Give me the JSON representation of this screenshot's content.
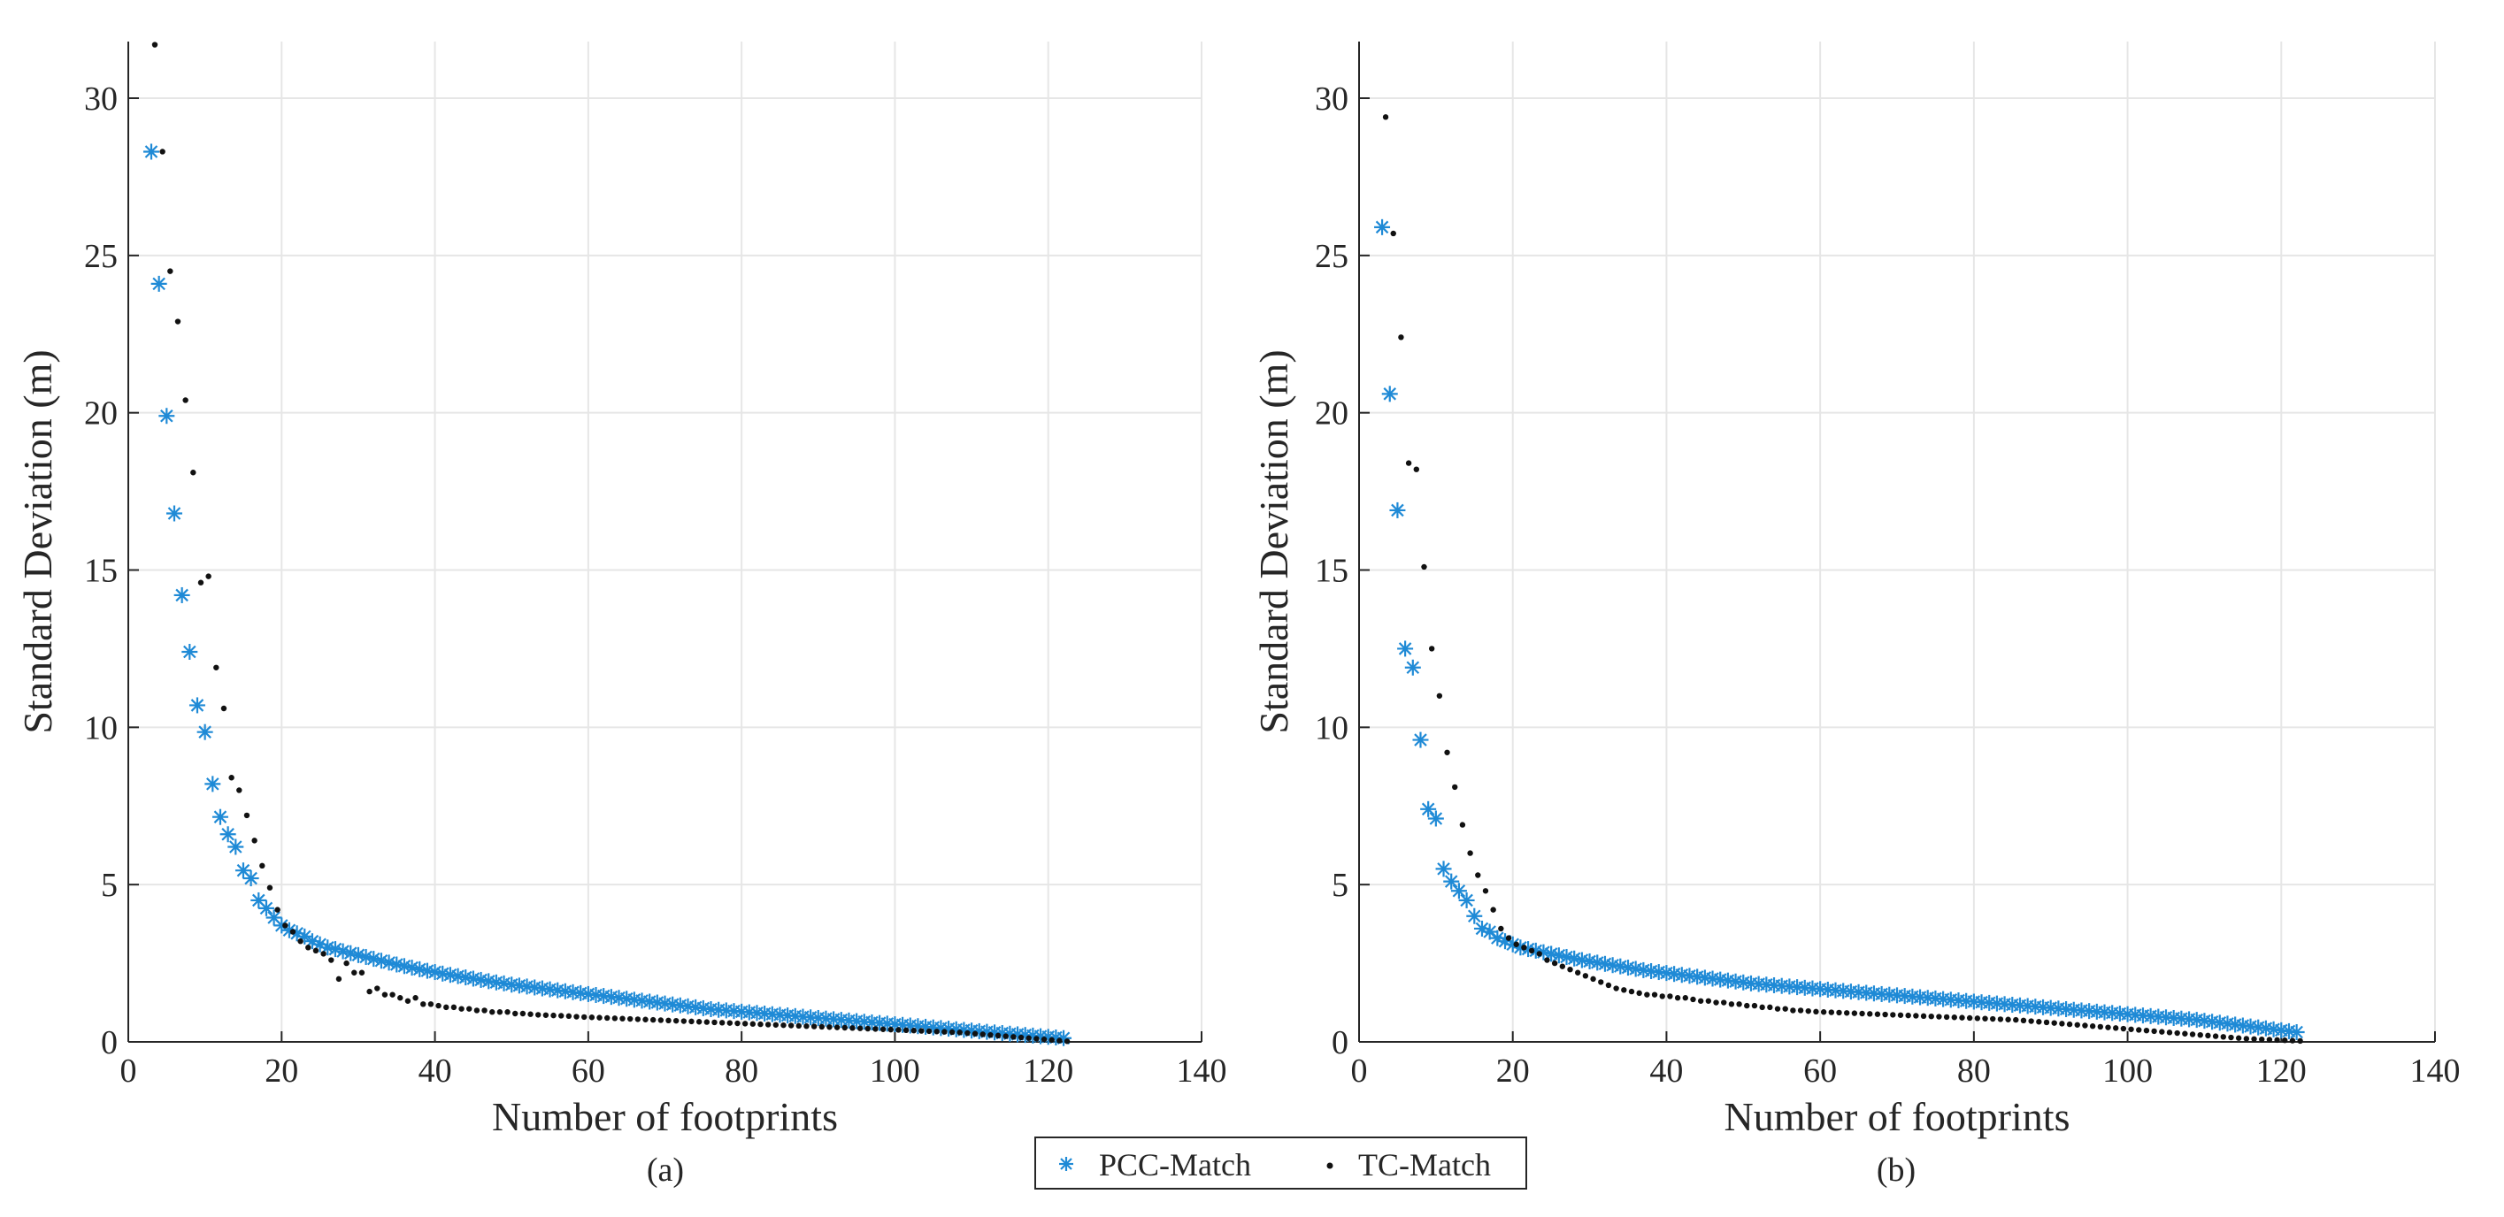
{
  "legend": {
    "entries": [
      {
        "label": "PCC-Match",
        "marker": "asterisk-icon",
        "color": "#1f8ad6"
      },
      {
        "label": "TC-Match",
        "marker": "dot-icon",
        "color": "#111111"
      }
    ]
  },
  "chart_data": [
    {
      "type": "scatter",
      "panel_label": "(a)",
      "xlabel": "Number of footprints",
      "ylabel": "Standard Deviation (m)",
      "xlim": [
        0,
        140
      ],
      "ylim": [
        0,
        31.8
      ],
      "xticks": [
        0,
        20,
        40,
        60,
        80,
        100,
        120,
        140
      ],
      "yticks": [
        0,
        5,
        10,
        15,
        20,
        25,
        30
      ],
      "grid": true,
      "series": [
        {
          "name": "PCC-Match",
          "marker": "asterisk",
          "x": [
            3,
            4,
            5,
            6,
            7,
            8,
            9,
            10,
            11,
            12,
            13,
            14,
            15,
            16,
            17,
            18,
            19,
            20,
            21,
            22,
            23,
            24,
            25,
            26,
            27,
            28,
            29,
            30,
            31,
            32,
            33,
            34,
            35,
            36,
            37,
            38,
            39,
            40,
            41,
            42,
            43,
            44,
            45,
            46,
            47,
            48,
            49,
            50,
            51,
            52,
            53,
            54,
            55,
            56,
            57,
            58,
            59,
            60,
            61,
            62,
            63,
            64,
            65,
            66,
            67,
            68,
            69,
            70,
            71,
            72,
            73,
            74,
            75,
            76,
            77,
            78,
            79,
            80,
            81,
            82,
            83,
            84,
            85,
            86,
            87,
            88,
            89,
            90,
            91,
            92,
            93,
            94,
            95,
            96,
            97,
            98,
            99,
            100,
            101,
            102,
            103,
            104,
            105,
            106,
            107,
            108,
            109,
            110,
            111,
            112,
            113,
            114,
            115,
            116,
            117,
            118,
            119,
            120,
            121,
            122
          ],
          "y": [
            28.3,
            24.1,
            19.9,
            16.8,
            14.2,
            12.4,
            10.7,
            9.85,
            8.2,
            7.15,
            6.6,
            6.2,
            5.45,
            5.2,
            4.5,
            4.25,
            3.95,
            3.7,
            3.55,
            3.45,
            3.35,
            3.2,
            3.1,
            3.0,
            2.95,
            2.88,
            2.82,
            2.76,
            2.7,
            2.64,
            2.58,
            2.52,
            2.46,
            2.41,
            2.36,
            2.31,
            2.26,
            2.22,
            2.17,
            2.13,
            2.09,
            2.05,
            2.01,
            1.97,
            1.93,
            1.89,
            1.86,
            1.82,
            1.79,
            1.76,
            1.73,
            1.7,
            1.67,
            1.64,
            1.61,
            1.58,
            1.55,
            1.52,
            1.49,
            1.46,
            1.43,
            1.4,
            1.37,
            1.34,
            1.31,
            1.28,
            1.25,
            1.22,
            1.19,
            1.16,
            1.13,
            1.1,
            1.07,
            1.04,
            1.02,
            1.0,
            0.98,
            0.96,
            0.94,
            0.92,
            0.9,
            0.88,
            0.86,
            0.84,
            0.82,
            0.8,
            0.78,
            0.76,
            0.74,
            0.72,
            0.7,
            0.68,
            0.66,
            0.64,
            0.62,
            0.6,
            0.58,
            0.56,
            0.54,
            0.52,
            0.5,
            0.48,
            0.46,
            0.44,
            0.42,
            0.4,
            0.38,
            0.36,
            0.34,
            0.32,
            0.3,
            0.28,
            0.26,
            0.24,
            0.22,
            0.2,
            0.18,
            0.16,
            0.14,
            0.12
          ]
        },
        {
          "name": "TC-Match",
          "marker": "dot",
          "x": [
            3,
            4,
            5,
            6,
            7,
            8,
            9,
            10,
            11,
            12,
            13,
            14,
            15,
            16,
            17,
            18,
            19,
            20,
            21,
            22,
            23,
            24,
            25,
            26,
            27,
            28,
            29,
            30,
            31,
            32,
            33,
            34,
            35,
            36,
            37,
            38,
            39,
            40,
            41,
            42,
            43,
            44,
            45,
            46,
            47,
            48,
            49,
            50,
            51,
            52,
            53,
            54,
            55,
            56,
            57,
            58,
            59,
            60,
            61,
            62,
            63,
            64,
            65,
            66,
            67,
            68,
            69,
            70,
            71,
            72,
            73,
            74,
            75,
            76,
            77,
            78,
            79,
            80,
            81,
            82,
            83,
            84,
            85,
            86,
            87,
            88,
            89,
            90,
            91,
            92,
            93,
            94,
            95,
            96,
            97,
            98,
            99,
            100,
            101,
            102,
            103,
            104,
            105,
            106,
            107,
            108,
            109,
            110,
            111,
            112,
            113,
            114,
            115,
            116,
            117,
            118,
            119,
            120,
            121,
            122
          ],
          "y": [
            31.7,
            28.3,
            24.5,
            22.9,
            20.4,
            18.1,
            14.6,
            14.8,
            11.9,
            10.6,
            8.4,
            8.0,
            7.2,
            6.4,
            5.6,
            4.9,
            4.2,
            3.7,
            3.5,
            3.2,
            3.0,
            2.9,
            2.8,
            2.6,
            2.0,
            2.5,
            2.2,
            2.2,
            1.6,
            1.7,
            1.5,
            1.5,
            1.4,
            1.3,
            1.4,
            1.2,
            1.2,
            1.15,
            1.1,
            1.1,
            1.05,
            1.05,
            1.0,
            1.0,
            0.95,
            0.95,
            0.95,
            0.9,
            0.9,
            0.88,
            0.86,
            0.85,
            0.84,
            0.83,
            0.82,
            0.8,
            0.79,
            0.78,
            0.77,
            0.76,
            0.75,
            0.74,
            0.73,
            0.72,
            0.71,
            0.7,
            0.69,
            0.68,
            0.67,
            0.66,
            0.65,
            0.64,
            0.63,
            0.62,
            0.61,
            0.6,
            0.59,
            0.58,
            0.57,
            0.56,
            0.55,
            0.54,
            0.53,
            0.52,
            0.51,
            0.5,
            0.49,
            0.48,
            0.47,
            0.46,
            0.45,
            0.44,
            0.43,
            0.42,
            0.41,
            0.4,
            0.39,
            0.38,
            0.37,
            0.36,
            0.35,
            0.34,
            0.33,
            0.32,
            0.31,
            0.3,
            0.28,
            0.26,
            0.24,
            0.22,
            0.2,
            0.18,
            0.16,
            0.14,
            0.12,
            0.1,
            0.08,
            0.06,
            0.04,
            0.02
          ]
        }
      ]
    },
    {
      "type": "scatter",
      "panel_label": "(b)",
      "xlabel": "Number of footprints",
      "ylabel": "Standard Deviation (m)",
      "xlim": [
        0,
        140
      ],
      "ylim": [
        0,
        31.8
      ],
      "xticks": [
        0,
        20,
        40,
        60,
        80,
        100,
        120,
        140
      ],
      "yticks": [
        0,
        5,
        10,
        15,
        20,
        25,
        30
      ],
      "grid": true,
      "series": [
        {
          "name": "PCC-Match",
          "marker": "asterisk",
          "x": [
            3,
            4,
            5,
            6,
            7,
            8,
            9,
            10,
            11,
            12,
            13,
            14,
            15,
            16,
            17,
            18,
            19,
            20,
            21,
            22,
            23,
            24,
            25,
            26,
            27,
            28,
            29,
            30,
            31,
            32,
            33,
            34,
            35,
            36,
            37,
            38,
            39,
            40,
            41,
            42,
            43,
            44,
            45,
            46,
            47,
            48,
            49,
            50,
            51,
            52,
            53,
            54,
            55,
            56,
            57,
            58,
            59,
            60,
            61,
            62,
            63,
            64,
            65,
            66,
            67,
            68,
            69,
            70,
            71,
            72,
            73,
            74,
            75,
            76,
            77,
            78,
            79,
            80,
            81,
            82,
            83,
            84,
            85,
            86,
            87,
            88,
            89,
            90,
            91,
            92,
            93,
            94,
            95,
            96,
            97,
            98,
            99,
            100,
            101,
            102,
            103,
            104,
            105,
            106,
            107,
            108,
            109,
            110,
            111,
            112,
            113,
            114,
            115,
            116,
            117,
            118,
            119,
            120,
            121,
            122
          ],
          "y": [
            25.9,
            20.6,
            16.9,
            12.5,
            11.9,
            9.6,
            7.4,
            7.1,
            5.5,
            5.1,
            4.8,
            4.5,
            4.0,
            3.6,
            3.5,
            3.3,
            3.2,
            3.1,
            3.0,
            2.95,
            2.9,
            2.85,
            2.8,
            2.75,
            2.7,
            2.65,
            2.6,
            2.56,
            2.52,
            2.48,
            2.44,
            2.4,
            2.36,
            2.32,
            2.28,
            2.25,
            2.22,
            2.19,
            2.16,
            2.13,
            2.1,
            2.07,
            2.04,
            2.01,
            1.98,
            1.95,
            1.92,
            1.89,
            1.86,
            1.84,
            1.82,
            1.8,
            1.78,
            1.76,
            1.74,
            1.72,
            1.7,
            1.68,
            1.66,
            1.64,
            1.62,
            1.6,
            1.58,
            1.56,
            1.54,
            1.52,
            1.5,
            1.48,
            1.46,
            1.44,
            1.42,
            1.4,
            1.38,
            1.36,
            1.34,
            1.32,
            1.3,
            1.28,
            1.26,
            1.24,
            1.22,
            1.2,
            1.18,
            1.16,
            1.14,
            1.12,
            1.1,
            1.08,
            1.06,
            1.04,
            1.02,
            1.0,
            0.98,
            0.96,
            0.94,
            0.92,
            0.9,
            0.88,
            0.86,
            0.84,
            0.82,
            0.8,
            0.78,
            0.76,
            0.74,
            0.72,
            0.7,
            0.67,
            0.64,
            0.61,
            0.58,
            0.55,
            0.52,
            0.49,
            0.46,
            0.43,
            0.4,
            0.37,
            0.34,
            0.31
          ]
        },
        {
          "name": "TC-Match",
          "marker": "dot",
          "x": [
            3,
            4,
            5,
            6,
            7,
            8,
            9,
            10,
            11,
            12,
            13,
            14,
            15,
            16,
            17,
            18,
            19,
            20,
            21,
            22,
            23,
            24,
            25,
            26,
            27,
            28,
            29,
            30,
            31,
            32,
            33,
            34,
            35,
            36,
            37,
            38,
            39,
            40,
            41,
            42,
            43,
            44,
            45,
            46,
            47,
            48,
            49,
            50,
            51,
            52,
            53,
            54,
            55,
            56,
            57,
            58,
            59,
            60,
            61,
            62,
            63,
            64,
            65,
            66,
            67,
            68,
            69,
            70,
            71,
            72,
            73,
            74,
            75,
            76,
            77,
            78,
            79,
            80,
            81,
            82,
            83,
            84,
            85,
            86,
            87,
            88,
            89,
            90,
            91,
            92,
            93,
            94,
            95,
            96,
            97,
            98,
            99,
            100,
            101,
            102,
            103,
            104,
            105,
            106,
            107,
            108,
            109,
            110,
            111,
            112,
            113,
            114,
            115,
            116,
            117,
            118,
            119,
            120,
            121,
            122
          ],
          "y": [
            29.4,
            25.7,
            22.4,
            18.4,
            18.2,
            15.1,
            12.5,
            11.0,
            9.2,
            8.1,
            6.9,
            6.0,
            5.3,
            4.8,
            4.2,
            3.6,
            3.3,
            3.1,
            3.0,
            2.9,
            2.8,
            2.6,
            2.5,
            2.4,
            2.3,
            2.2,
            2.1,
            2.0,
            1.9,
            1.8,
            1.7,
            1.65,
            1.6,
            1.55,
            1.5,
            1.5,
            1.45,
            1.45,
            1.4,
            1.4,
            1.35,
            1.3,
            1.3,
            1.25,
            1.25,
            1.2,
            1.2,
            1.15,
            1.15,
            1.1,
            1.1,
            1.05,
            1.05,
            1.0,
            1.0,
            0.98,
            0.96,
            0.95,
            0.94,
            0.93,
            0.92,
            0.91,
            0.9,
            0.89,
            0.88,
            0.87,
            0.86,
            0.85,
            0.84,
            0.83,
            0.82,
            0.81,
            0.8,
            0.79,
            0.78,
            0.77,
            0.76,
            0.75,
            0.74,
            0.73,
            0.72,
            0.71,
            0.7,
            0.68,
            0.66,
            0.64,
            0.62,
            0.6,
            0.58,
            0.56,
            0.54,
            0.52,
            0.5,
            0.48,
            0.46,
            0.44,
            0.42,
            0.4,
            0.38,
            0.36,
            0.34,
            0.32,
            0.3,
            0.28,
            0.26,
            0.24,
            0.22,
            0.2,
            0.18,
            0.16,
            0.14,
            0.12,
            0.1,
            0.09,
            0.08,
            0.07,
            0.06,
            0.05,
            0.04,
            0.03
          ]
        }
      ]
    }
  ]
}
